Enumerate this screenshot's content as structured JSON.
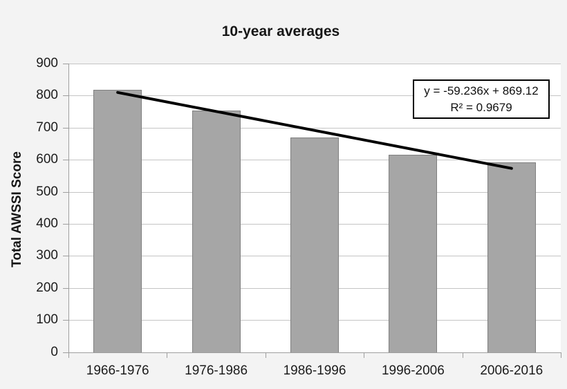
{
  "title": "10-year averages",
  "y_axis_title": "Total AWSSI Score",
  "trendline_box": {
    "equation_label": "y = -59.236x + 869.12",
    "r_squared_label": "R² = 0.9679"
  },
  "colors": {
    "page_background": "#f3f3f3",
    "plot_background": "#ffffff",
    "bar_fill": "#a6a6a6",
    "bar_border": "#7f7f7f",
    "gridline": "#c4c4c4",
    "axis_line": "#9e9e9e",
    "trendline": "#000000",
    "text": "#1c1c1c"
  },
  "chart_data": {
    "type": "bar",
    "title": "10-year averages",
    "xlabel": "",
    "ylabel": "Total AWSSI Score",
    "categories": [
      "1966-1976",
      "1976-1986",
      "1986-1996",
      "1996-2006",
      "2006-2016"
    ],
    "values": [
      820,
      755,
      670,
      617,
      593
    ],
    "ylim": [
      0,
      900
    ],
    "ytick_step": 100,
    "grid": true,
    "legend": false,
    "trendline": {
      "type": "linear",
      "slope": -59.236,
      "intercept": 869.12,
      "equation": "y = -59.236x + 869.12",
      "r_squared": 0.9679,
      "x_domain": [
        1,
        5
      ]
    },
    "annotations": [
      "y = -59.236x + 869.12",
      "R² = 0.9679"
    ]
  }
}
